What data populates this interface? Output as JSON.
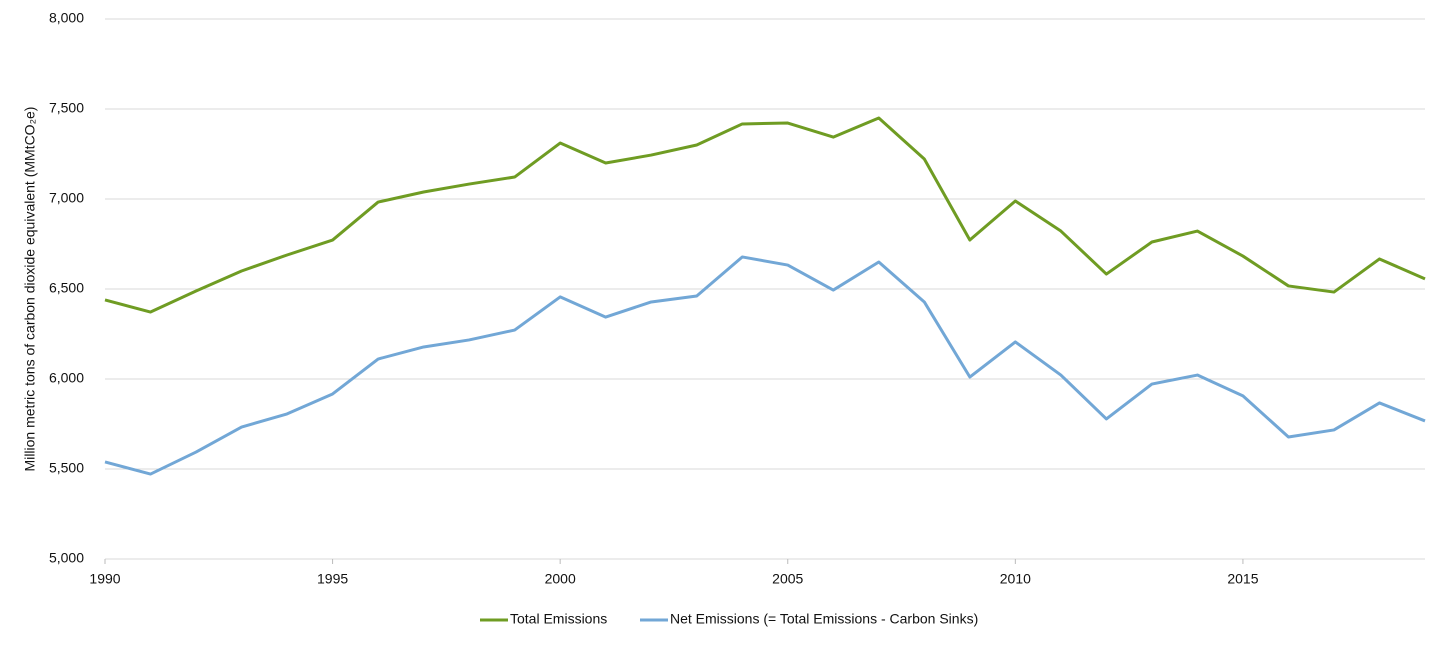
{
  "chart_data": {
    "type": "line",
    "y_label": "Million metric tons of carbon dioxide equivalent (MMtCO₂e)",
    "x": [
      1990,
      1991,
      1992,
      1993,
      1994,
      1995,
      1996,
      1997,
      1998,
      1999,
      2000,
      2001,
      2002,
      2003,
      2004,
      2005,
      2006,
      2007,
      2008,
      2009,
      2010,
      2011,
      2012,
      2013,
      2014,
      2015,
      2016,
      2017,
      2018,
      2019
    ],
    "series": [
      {
        "name": "Total Emissions",
        "color": "#6f9c23",
        "values": [
          6439,
          6372,
          6489,
          6600,
          6689,
          6772,
          6983,
          7039,
          7083,
          7122,
          7311,
          7200,
          7244,
          7300,
          7417,
          7422,
          7344,
          7450,
          7222,
          6772,
          6989,
          6822,
          6583,
          6761,
          6822,
          6683,
          6517,
          6483,
          6667,
          6556
        ]
      },
      {
        "name": "Net Emissions (= Total Emissions - Carbon Sinks)",
        "color": "#72a7d6",
        "values": [
          5539,
          5472,
          5594,
          5733,
          5806,
          5917,
          6111,
          6178,
          6217,
          6272,
          6456,
          6344,
          6428,
          6461,
          6678,
          6633,
          6494,
          6650,
          6428,
          6011,
          6206,
          6022,
          5778,
          5972,
          6022,
          5906,
          5678,
          5717,
          5867,
          5767
        ]
      }
    ],
    "xlim": [
      1990,
      2019
    ],
    "xticks": [
      1990,
      1995,
      2000,
      2005,
      2010,
      2015
    ],
    "ylim": [
      5000,
      8000
    ],
    "yticks": [
      {
        "value": 5000,
        "label": "5,000"
      },
      {
        "value": 5500,
        "label": "5,500"
      },
      {
        "value": 6000,
        "label": "6,000"
      },
      {
        "value": 6500,
        "label": "6,500"
      },
      {
        "value": 7000,
        "label": "7,000"
      },
      {
        "value": 7500,
        "label": "7,500"
      },
      {
        "value": 8000,
        "label": "8,000"
      }
    ],
    "grid": true,
    "legend": "bottom"
  }
}
